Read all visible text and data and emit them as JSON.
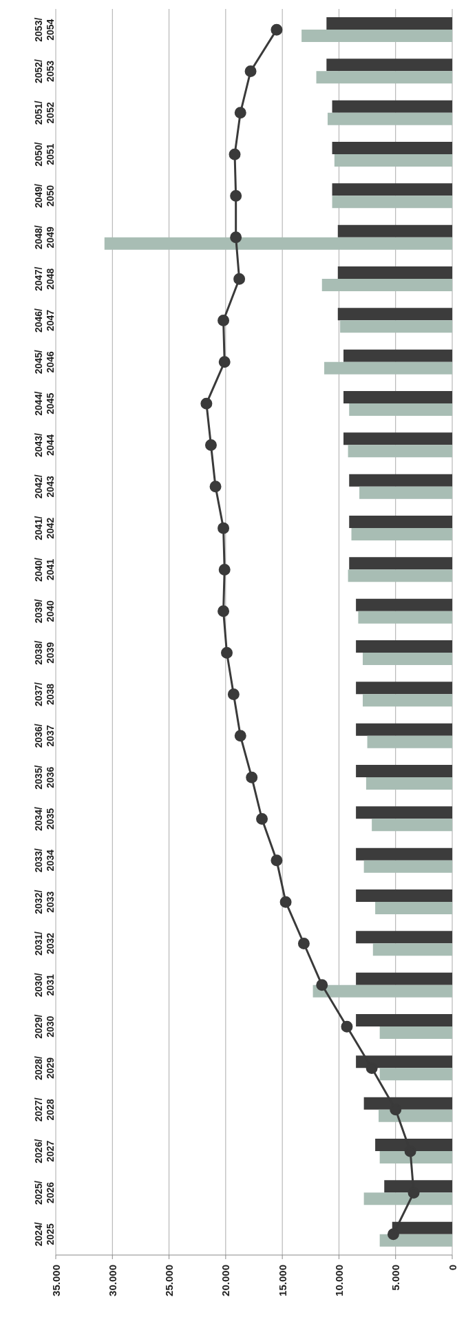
{
  "chart_data": {
    "type": "bar",
    "orientation": "horizontal",
    "categories": [
      "2053/ 2054",
      "2052/ 2053",
      "2051/ 2052",
      "2050/ 2051",
      "2049/ 2050",
      "2048/ 2049",
      "2047/ 2048",
      "2046/ 2047",
      "2045/ 2046",
      "2044/ 2045",
      "2043/ 2044",
      "2042/ 2043",
      "2041/ 2042",
      "2040/ 2041",
      "2039/ 2040",
      "2038/ 2039",
      "2037/ 2038",
      "2036/ 2037",
      "2035/ 2036",
      "2034/ 2035",
      "2033/ 2034",
      "2032/ 2033",
      "2031/ 2032",
      "2030/ 2031",
      "2029/ 2030",
      "2028/ 2029",
      "2027/ 2028",
      "2026/ 2027",
      "2025/ 2026",
      "2024/ 2025"
    ],
    "series": [
      {
        "color": "#3c3c3c",
        "values": [
          11100,
          11100,
          10600,
          10600,
          10600,
          10100,
          10100,
          10100,
          9600,
          9600,
          9600,
          9100,
          9100,
          9100,
          8500,
          8500,
          8500,
          8500,
          8500,
          8500,
          8500,
          8500,
          8500,
          8500,
          8500,
          8500,
          7800,
          6800,
          6000,
          5300
        ]
      },
      {
        "color": "#a8bdb4",
        "values": [
          13300,
          12000,
          11000,
          10400,
          10600,
          30700,
          11500,
          9900,
          11300,
          9100,
          9200,
          8200,
          8900,
          9200,
          8300,
          7900,
          7900,
          7500,
          7600,
          7100,
          7800,
          6800,
          7000,
          12300,
          6400,
          6400,
          6500,
          6400,
          7800,
          6400
        ]
      },
      {
        "type": "line",
        "color": "#3a3a3a",
        "values": [
          15500,
          17800,
          18700,
          19200,
          19100,
          19100,
          18800,
          20200,
          20100,
          21700,
          21300,
          20900,
          20200,
          20100,
          20200,
          19900,
          19300,
          18700,
          17700,
          16800,
          15500,
          14700,
          13100,
          11500,
          9300,
          7100,
          5000,
          3700,
          3400,
          5200
        ]
      }
    ],
    "xlim": [
      35000,
      0
    ],
    "xticks": [
      {
        "value": 0,
        "label": "0"
      },
      {
        "value": 5000,
        "label": "5.000"
      },
      {
        "value": 10000,
        "label": "10.000"
      },
      {
        "value": 15000,
        "label": "15.000"
      },
      {
        "value": 20000,
        "label": "20.000"
      },
      {
        "value": 25000,
        "label": "25.000"
      },
      {
        "value": 30000,
        "label": "30.000"
      },
      {
        "value": 35000,
        "label": "35.000"
      }
    ],
    "grid": "x",
    "marker": "circle",
    "legend": false
  }
}
